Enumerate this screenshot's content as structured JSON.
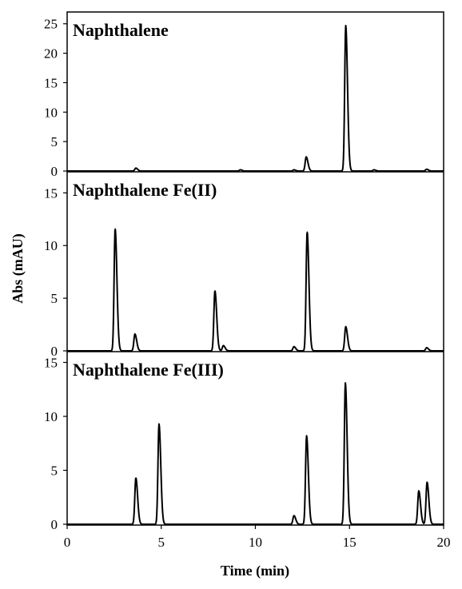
{
  "chart_data": {
    "type": "line",
    "xlabel": "Time (min)",
    "ylabel": "Abs (mAU)",
    "xlim": [
      0,
      20
    ],
    "xticks": [
      "0",
      "5",
      "10",
      "15",
      "20"
    ],
    "line_color": "#000000",
    "grid": false,
    "panels": [
      {
        "title": "Naphthalene",
        "ylim": [
          0,
          27
        ],
        "yticks": [
          "0",
          "5",
          "10",
          "15",
          "20",
          "25"
        ],
        "peaks": [
          {
            "x": 3.65,
            "y": 0.5
          },
          {
            "x": 9.2,
            "y": 0.2
          },
          {
            "x": 12.05,
            "y": 0.2
          },
          {
            "x": 12.7,
            "y": 2.4
          },
          {
            "x": 14.8,
            "y": 24.7
          },
          {
            "x": 16.3,
            "y": 0.2
          },
          {
            "x": 19.1,
            "y": 0.3
          }
        ]
      },
      {
        "title": "Naphthalene Fe(II)",
        "ylim": [
          0,
          17
        ],
        "yticks": [
          "0",
          "5",
          "10",
          "15"
        ],
        "peaks": [
          {
            "x": 2.55,
            "y": 11.6
          },
          {
            "x": 3.6,
            "y": 1.6
          },
          {
            "x": 7.85,
            "y": 5.7
          },
          {
            "x": 8.3,
            "y": 0.5
          },
          {
            "x": 12.05,
            "y": 0.4
          },
          {
            "x": 12.75,
            "y": 11.3
          },
          {
            "x": 14.8,
            "y": 2.3
          },
          {
            "x": 19.1,
            "y": 0.3
          }
        ]
      },
      {
        "title": "Naphthalene Fe(III)",
        "ylim": [
          0,
          16
        ],
        "yticks": [
          "0",
          "5",
          "10",
          "15"
        ],
        "peaks": [
          {
            "x": 3.65,
            "y": 4.3
          },
          {
            "x": 4.88,
            "y": 9.3
          },
          {
            "x": 12.05,
            "y": 0.8
          },
          {
            "x": 12.72,
            "y": 8.2
          },
          {
            "x": 14.78,
            "y": 13.1
          },
          {
            "x": 18.68,
            "y": 3.1
          },
          {
            "x": 19.12,
            "y": 3.9
          }
        ]
      }
    ]
  }
}
